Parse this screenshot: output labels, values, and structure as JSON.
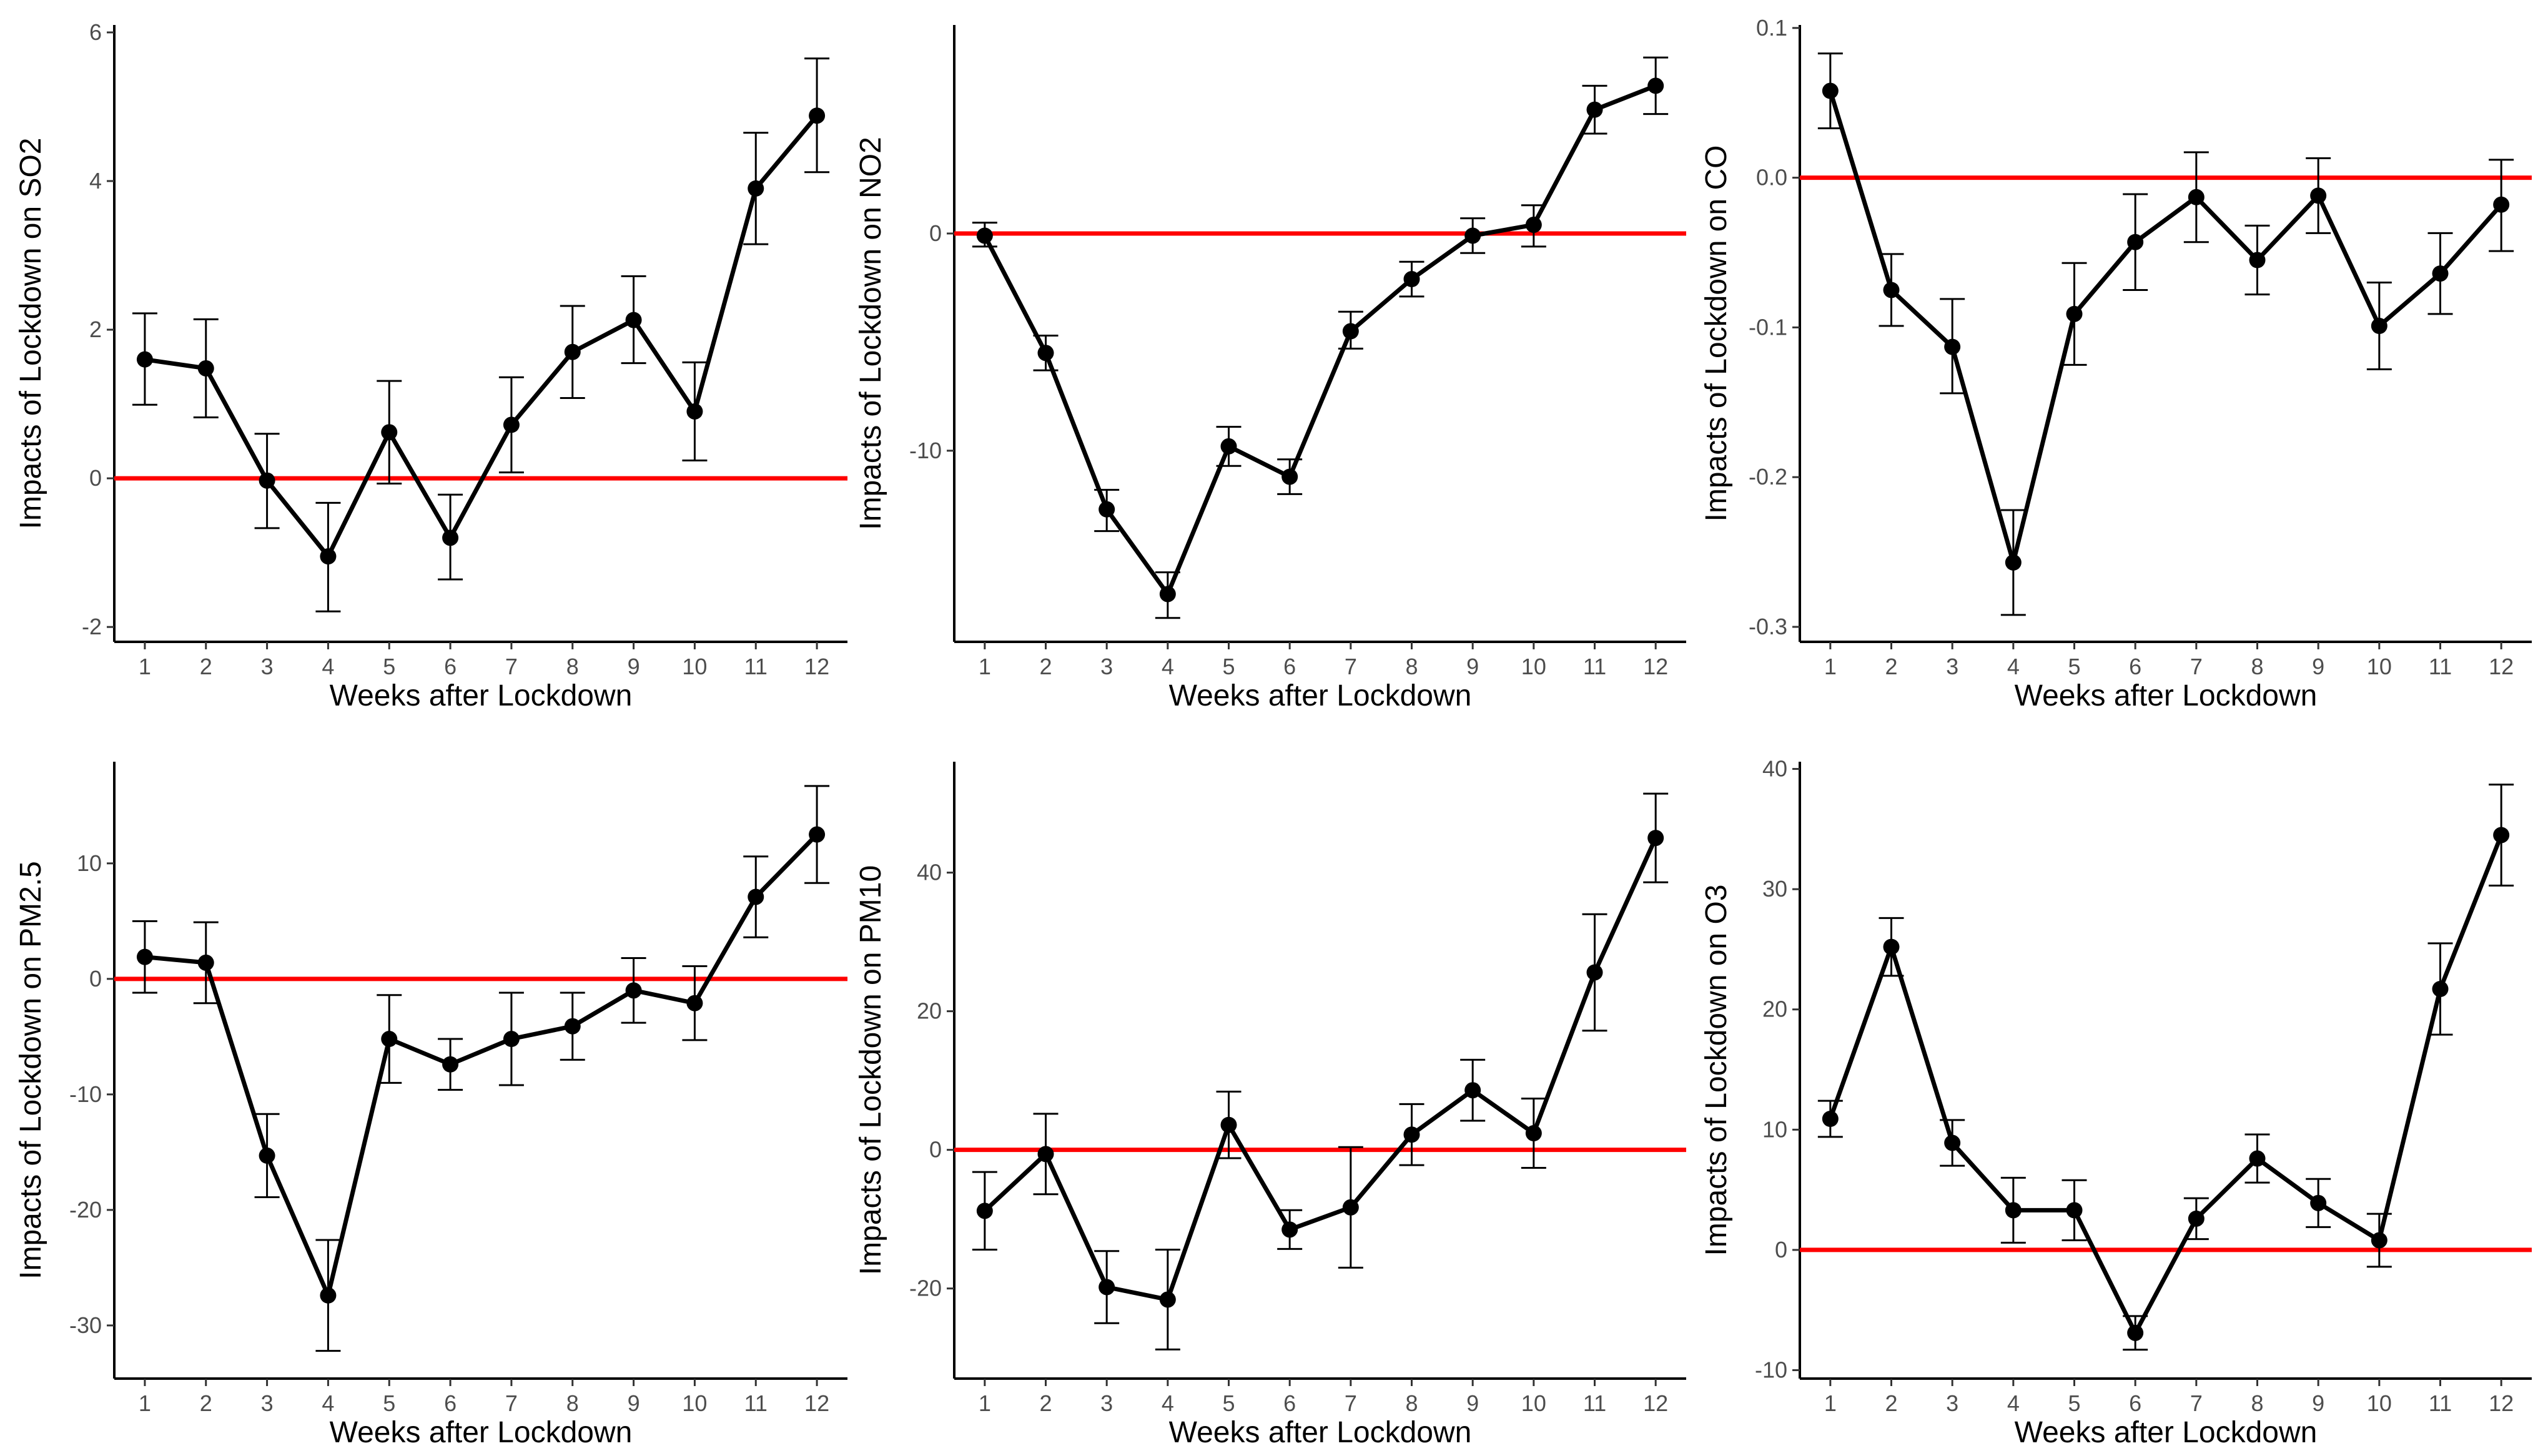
{
  "colors": {
    "line": "#000000",
    "points": "#000000",
    "reference": "#ff0000",
    "ticks": "#4d4d4d"
  },
  "chart_data": [
    {
      "type": "line",
      "title": "",
      "xlabel": "Weeks after Lockdown",
      "ylabel": "Impacts of Lockdown on SO2",
      "categories": [
        1,
        2,
        3,
        4,
        5,
        6,
        7,
        8,
        9,
        10,
        11,
        12
      ],
      "values": [
        1.6,
        1.48,
        -0.03,
        -1.05,
        0.62,
        -0.8,
        0.72,
        1.7,
        2.13,
        0.9,
        3.9,
        4.88
      ],
      "lower": [
        0.99,
        0.82,
        -0.67,
        -1.79,
        -0.07,
        -1.36,
        0.08,
        1.08,
        1.55,
        0.24,
        3.15,
        4.12
      ],
      "upper": [
        2.22,
        2.14,
        0.6,
        -0.33,
        1.31,
        -0.22,
        1.36,
        2.32,
        2.72,
        1.56,
        4.65,
        5.65
      ],
      "ylim": [
        -2.2,
        6.1
      ],
      "yticks": [
        -2,
        0,
        2,
        4,
        6
      ],
      "ytick_labels": [
        "-2",
        "0",
        "2",
        "4",
        "6"
      ],
      "reference_line": 0
    },
    {
      "type": "line",
      "title": "",
      "xlabel": "Weeks after Lockdown",
      "ylabel": "Impacts of Lockdown on NO2",
      "categories": [
        1,
        2,
        3,
        4,
        5,
        6,
        7,
        8,
        9,
        10,
        11,
        12
      ],
      "values": [
        -0.1,
        -5.5,
        -12.7,
        -16.6,
        -9.8,
        -11.2,
        -4.5,
        -2.1,
        -0.1,
        0.4,
        5.7,
        6.8
      ],
      "lower": [
        -0.6,
        -6.3,
        -13.7,
        -17.7,
        -10.7,
        -12.0,
        -5.3,
        -2.9,
        -0.9,
        -0.6,
        4.6,
        5.5
      ],
      "upper": [
        0.5,
        -4.7,
        -11.8,
        -15.6,
        -8.9,
        -10.4,
        -3.6,
        -1.3,
        0.7,
        1.3,
        6.8,
        8.1
      ],
      "ylim": [
        -18.8,
        9.6
      ],
      "yticks": [
        -10,
        0
      ],
      "ytick_labels": [
        "-10",
        "0"
      ],
      "reference_line": 0
    },
    {
      "type": "line",
      "title": "",
      "xlabel": "Weeks after Lockdown",
      "ylabel": "Impacts of Lockdown on CO",
      "categories": [
        1,
        2,
        3,
        4,
        5,
        6,
        7,
        8,
        9,
        10,
        11,
        12
      ],
      "values": [
        0.058,
        -0.075,
        -0.113,
        -0.257,
        -0.091,
        -0.043,
        -0.013,
        -0.055,
        -0.012,
        -0.099,
        -0.064,
        -0.018
      ],
      "lower": [
        0.033,
        -0.099,
        -0.144,
        -0.292,
        -0.125,
        -0.075,
        -0.043,
        -0.078,
        -0.037,
        -0.128,
        -0.091,
        -0.049
      ],
      "upper": [
        0.083,
        -0.051,
        -0.081,
        -0.222,
        -0.057,
        -0.011,
        0.017,
        -0.032,
        0.013,
        -0.07,
        -0.037,
        0.012
      ],
      "ylim": [
        -0.31,
        0.102
      ],
      "yticks": [
        -0.3,
        -0.2,
        -0.1,
        0.0,
        0.1
      ],
      "ytick_labels": [
        "-0.3",
        "-0.2",
        "-0.1",
        "0.0",
        "0.1"
      ],
      "reference_line": 0
    },
    {
      "type": "line",
      "title": "",
      "xlabel": "Weeks after Lockdown",
      "ylabel": "Impacts of Lockdown on PM2.5",
      "categories": [
        1,
        2,
        3,
        4,
        5,
        6,
        7,
        8,
        9,
        10,
        11,
        12
      ],
      "values": [
        1.9,
        1.4,
        -15.3,
        -27.4,
        -5.2,
        -7.4,
        -5.2,
        -4.1,
        -1.0,
        -2.1,
        7.1,
        12.5
      ],
      "lower": [
        -1.2,
        -2.1,
        -18.9,
        -32.2,
        -9.0,
        -9.6,
        -9.2,
        -7.0,
        -3.8,
        -5.3,
        3.6,
        8.3
      ],
      "upper": [
        5.0,
        4.9,
        -11.7,
        -22.6,
        -1.4,
        -5.2,
        -1.2,
        -1.2,
        1.8,
        1.1,
        10.6,
        16.7
      ],
      "ylim": [
        -34.6,
        18.8
      ],
      "yticks": [
        -30,
        -20,
        -10,
        0,
        10
      ],
      "ytick_labels": [
        "-30",
        "-20",
        "-10",
        "0",
        "10"
      ],
      "reference_line": 0
    },
    {
      "type": "line",
      "title": "",
      "xlabel": "Weeks after Lockdown",
      "ylabel": "Impacts of Lockdown on PM10",
      "categories": [
        1,
        2,
        3,
        4,
        5,
        6,
        7,
        8,
        9,
        10,
        11,
        12
      ],
      "values": [
        -8.8,
        -0.6,
        -19.8,
        -21.6,
        3.6,
        -11.5,
        -8.3,
        2.2,
        8.6,
        2.4,
        25.6,
        45.0
      ],
      "lower": [
        -14.4,
        -6.4,
        -25.0,
        -28.8,
        -1.2,
        -14.3,
        -17.0,
        -2.2,
        4.2,
        -2.6,
        17.2,
        38.6
      ],
      "upper": [
        -3.2,
        5.2,
        -14.6,
        -14.4,
        8.4,
        -8.7,
        0.4,
        6.6,
        13.0,
        7.4,
        34.0,
        51.4
      ],
      "ylim": [
        -33.0,
        56.0
      ],
      "yticks": [
        -20,
        0,
        20,
        40
      ],
      "ytick_labels": [
        "-20",
        "0",
        "20",
        "40"
      ],
      "reference_line": 0
    },
    {
      "type": "line",
      "title": "",
      "xlabel": "Weeks after Lockdown",
      "ylabel": "Impacts of Lockdown on O3",
      "categories": [
        1,
        2,
        3,
        4,
        5,
        6,
        7,
        8,
        9,
        10,
        11,
        12
      ],
      "values": [
        10.9,
        25.2,
        8.9,
        3.3,
        3.3,
        -6.9,
        2.6,
        7.6,
        3.9,
        0.8,
        21.7,
        34.5
      ],
      "lower": [
        9.4,
        22.8,
        7.0,
        0.6,
        0.8,
        -8.3,
        0.9,
        5.6,
        1.9,
        -1.4,
        17.9,
        30.3
      ],
      "upper": [
        12.4,
        27.6,
        10.8,
        6.0,
        5.8,
        -5.5,
        4.3,
        9.6,
        5.9,
        3.0,
        25.5,
        38.7
      ],
      "ylim": [
        -10.7,
        40.6
      ],
      "yticks": [
        -10,
        0,
        10,
        20,
        30,
        40
      ],
      "ytick_labels": [
        "-10",
        "0",
        "10",
        "20",
        "30",
        "40"
      ],
      "reference_line": 0
    }
  ]
}
